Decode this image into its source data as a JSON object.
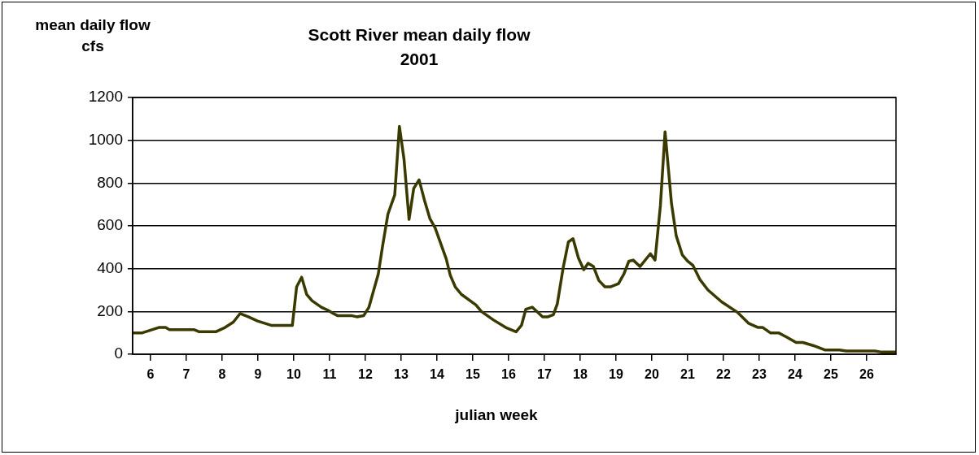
{
  "chart_data": {
    "type": "line",
    "title": "Scott River mean daily flow",
    "subtitle": "2001",
    "ylabel": "mean daily flow\ncfs",
    "xlabel": "julian week",
    "x": [
      5.5,
      5.77,
      6.23,
      6.42,
      6.53,
      7.21,
      7.36,
      7.82,
      8.08,
      8.31,
      8.5,
      8.73,
      8.99,
      9.37,
      9.96,
      10.08,
      10.22,
      10.36,
      10.51,
      10.77,
      10.96,
      11.11,
      11.23,
      11.63,
      11.76,
      11.95,
      12.1,
      12.36,
      12.48,
      12.63,
      12.82,
      12.95,
      13.08,
      13.22,
      13.35,
      13.5,
      13.65,
      13.8,
      13.95,
      14.11,
      14.26,
      14.37,
      14.51,
      14.68,
      15.09,
      15.24,
      15.58,
      15.92,
      16.21,
      16.36,
      16.48,
      16.66,
      16.95,
      17.1,
      17.25,
      17.36,
      17.52,
      17.67,
      17.8,
      17.95,
      18.1,
      18.22,
      18.37,
      18.52,
      18.69,
      18.84,
      19.07,
      19.22,
      19.36,
      19.48,
      19.67,
      19.96,
      20.09,
      20.24,
      20.37,
      20.55,
      20.68,
      20.85,
      21.0,
      21.15,
      21.34,
      21.57,
      21.95,
      22.4,
      22.7,
      22.97,
      23.1,
      23.31,
      23.54,
      23.77,
      24.03,
      24.22,
      24.52,
      24.83,
      25.24,
      25.43,
      26.23,
      26.42,
      26.81
    ],
    "values": [
      100,
      100,
      125,
      125,
      115,
      115,
      105,
      105,
      125,
      150,
      190,
      175,
      155,
      135,
      135,
      315,
      360,
      280,
      250,
      220,
      205,
      190,
      180,
      180,
      175,
      180,
      220,
      375,
      505,
      655,
      745,
      1065,
      910,
      630,
      775,
      815,
      720,
      635,
      590,
      515,
      445,
      370,
      315,
      280,
      230,
      200,
      160,
      125,
      105,
      135,
      210,
      220,
      175,
      175,
      185,
      235,
      400,
      525,
      540,
      450,
      395,
      425,
      410,
      345,
      315,
      315,
      330,
      375,
      435,
      440,
      410,
      470,
      440,
      695,
      1040,
      705,
      555,
      465,
      435,
      415,
      350,
      300,
      245,
      195,
      145,
      125,
      125,
      100,
      100,
      80,
      55,
      55,
      40,
      20,
      20,
      15,
      15,
      10,
      10
    ],
    "color": "#3a3a00",
    "marker": "none",
    "line_style": "solid",
    "grid": "y",
    "xlim": [
      5.5,
      26.82
    ],
    "xticks": [
      6,
      7,
      8,
      9,
      10,
      11,
      12,
      13,
      14,
      15,
      16,
      17,
      18,
      19,
      20,
      21,
      22,
      23,
      24,
      25,
      26
    ],
    "ylim": [
      0,
      1200
    ],
    "yticks": [
      0,
      200,
      400,
      600,
      800,
      1000,
      1200
    ]
  }
}
